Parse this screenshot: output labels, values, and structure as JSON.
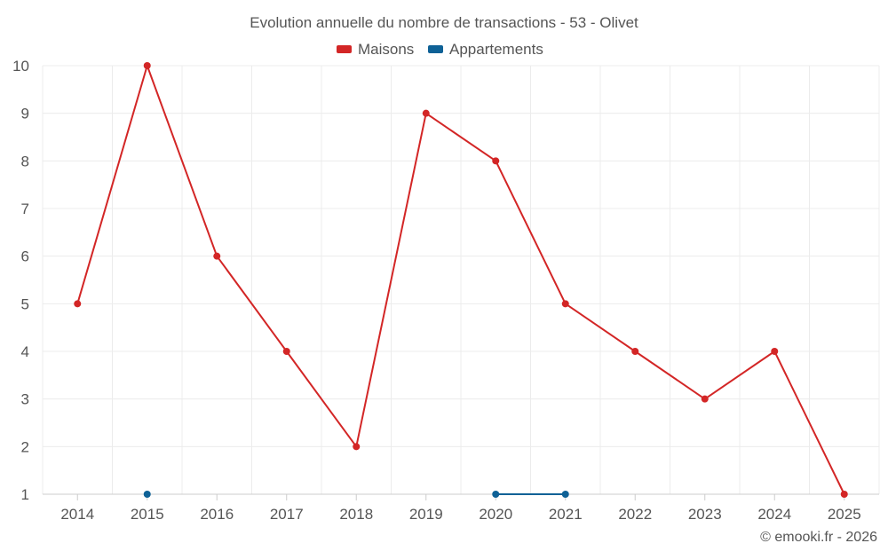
{
  "chart_data": {
    "type": "line",
    "title": "Evolution annuelle du nombre de transactions - 53 - Olivet",
    "categories": [
      "2014",
      "2015",
      "2016",
      "2017",
      "2018",
      "2019",
      "2020",
      "2021",
      "2022",
      "2023",
      "2024",
      "2025"
    ],
    "series": [
      {
        "name": "Maisons",
        "color": "#d32626",
        "values": [
          5,
          10,
          6,
          4,
          2,
          9,
          8,
          5,
          4,
          3,
          4,
          1
        ]
      },
      {
        "name": "Appartements",
        "color": "#0e6196",
        "values": [
          null,
          1,
          null,
          null,
          null,
          null,
          1,
          1,
          null,
          null,
          null,
          null
        ]
      }
    ],
    "yticks": [
      1,
      2,
      3,
      4,
      5,
      6,
      7,
      8,
      9,
      10
    ],
    "ylim": [
      1,
      10
    ],
    "xlabel": "",
    "ylabel": "",
    "grid": true,
    "legend_position": "top-center",
    "credit": "© emooki.fr - 2026"
  },
  "colors": {
    "text": "#555555",
    "grid": "#ececec",
    "axis": "#cccccc"
  }
}
